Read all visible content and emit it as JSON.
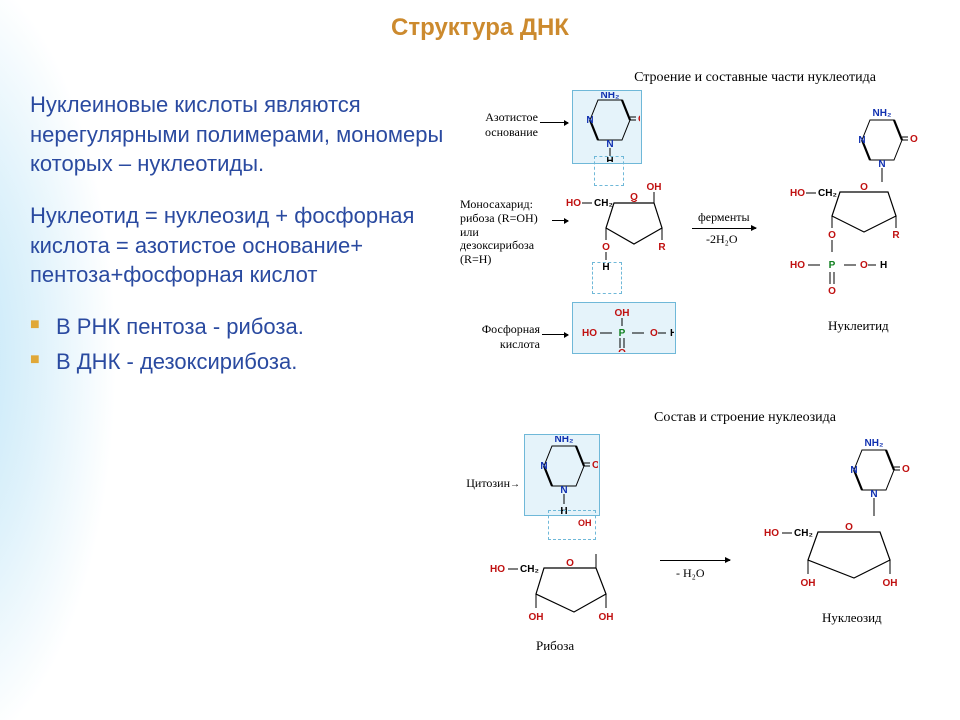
{
  "title": {
    "text": "Структура ДНК",
    "color": "#cc8a2e"
  },
  "text": {
    "p1": "Нуклеиновые кислоты являются нерегулярными полимерами, мономеры которых – нуклеотиды.",
    "p2": "Нуклеотид = нуклеозид + фосфорная кислота = азотистое основание+ пентоза+фосфорная кислот",
    "color": "#2a4aa0"
  },
  "bullets": {
    "items": [
      "В РНК пентоза - рибоза.",
      "В ДНК - дезоксирибоза."
    ],
    "marker_color": "#e0a838",
    "text_color": "#2a4aa0"
  },
  "diagram1": {
    "title": "Строение и составные части нуклеотида",
    "labels": {
      "base": "Азотистое основание",
      "sugar": "Моносахарид: рибоза (R=OH) или дезоксирибоза (R=H)",
      "phos": "Фосфорная кислота",
      "enzymes": "ферменты",
      "minus2h2o": "-2H₂O",
      "product": "Нуклеитид"
    }
  },
  "diagram2": {
    "title": "Состав и строение нуклеозида",
    "labels": {
      "cyt": "Цитозик",
      "rib": "Рибоза",
      "minush2o": "- H₂O",
      "product": "Нуклеозид"
    }
  },
  "chem_colors": {
    "N": "#1030b0",
    "O": "#c01010",
    "P": "#108020",
    "C": "#000000",
    "H": "#000000",
    "R": "#c01010"
  },
  "box_bg": "#cde7f3",
  "box_border": "#6fb8d8"
}
